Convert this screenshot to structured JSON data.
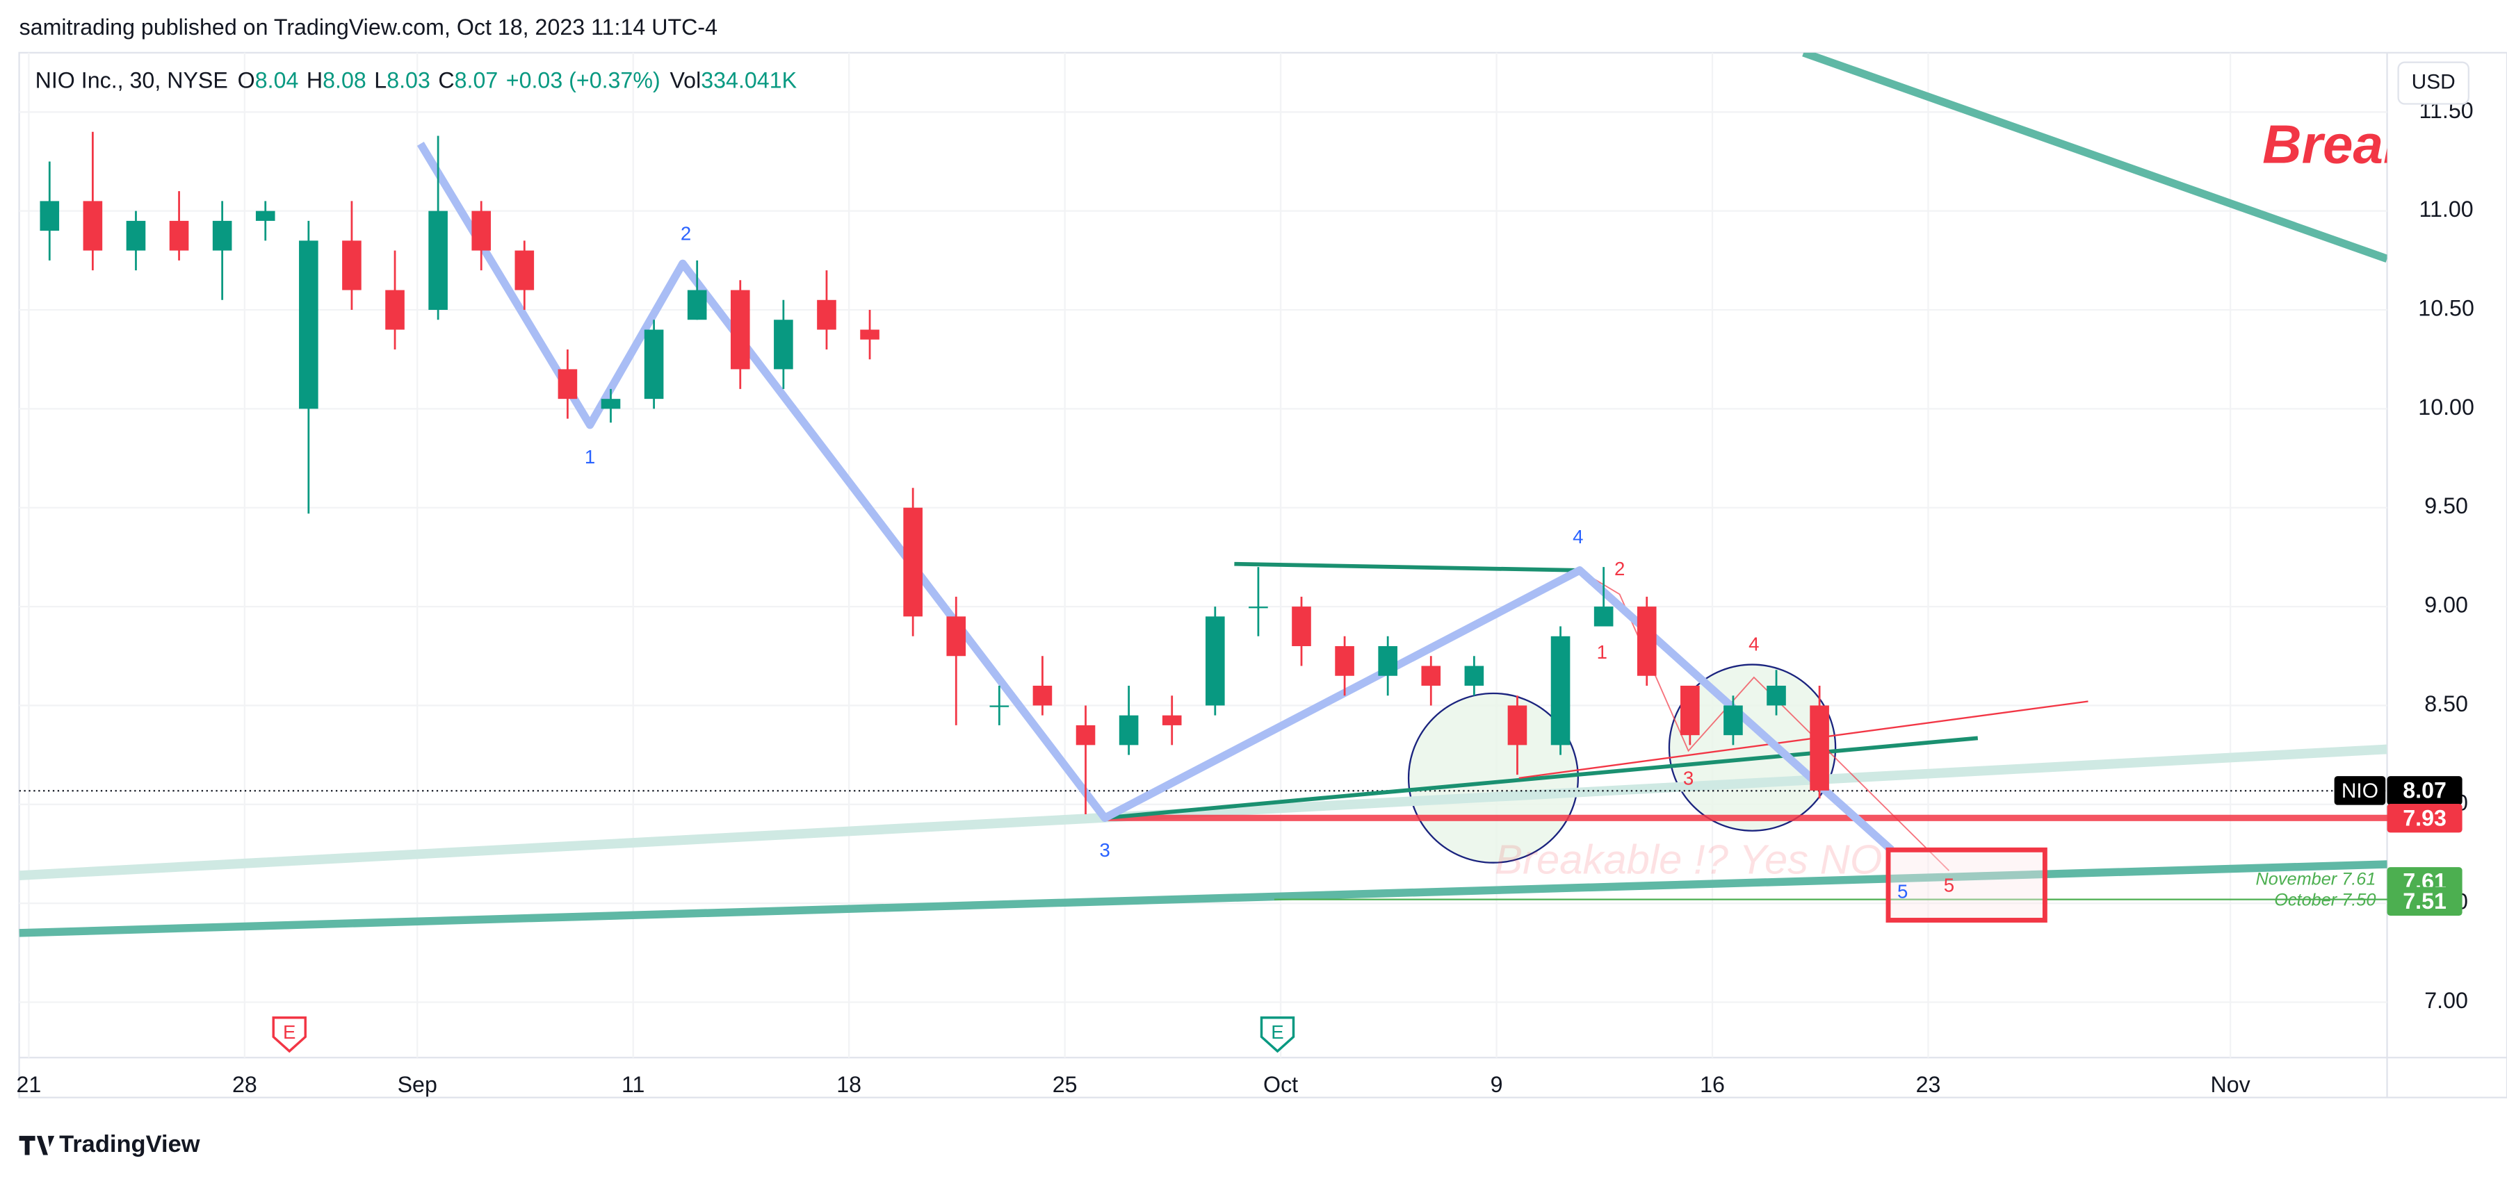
{
  "header": {
    "publisher": "samitrading published on TradingView.com, Oct 18, 2023 11:14 UTC-4"
  },
  "chart_data": {
    "type": "candlestick",
    "title": "NIO Inc., 30, NYSE",
    "legend_items": [
      {
        "key": "O",
        "value": 8.04
      },
      {
        "key": "H",
        "value": 8.08
      },
      {
        "key": "L",
        "value": 8.03
      },
      {
        "key": "C",
        "value": 8.07
      }
    ],
    "change": "+0.03 (+0.37%)",
    "volume": {
      "key": "Vol",
      "value": "334.041K"
    },
    "currency": "USD",
    "x": [
      "2023-08-21",
      "2023-08-22",
      "2023-08-23",
      "2023-08-24",
      "2023-08-25",
      "2023-08-28",
      "2023-08-29",
      "2023-08-30",
      "2023-08-31",
      "2023-09-01",
      "2023-09-05",
      "2023-09-06",
      "2023-09-07",
      "2023-09-08",
      "2023-09-11",
      "2023-09-12",
      "2023-09-13",
      "2023-09-14",
      "2023-09-15",
      "2023-09-18",
      "2023-09-19",
      "2023-09-20",
      "2023-09-21",
      "2023-09-22",
      "2023-09-25",
      "2023-09-26",
      "2023-09-27",
      "2023-09-28",
      "2023-09-29",
      "2023-10-02",
      "2023-10-03",
      "2023-10-04",
      "2023-10-05",
      "2023-10-06",
      "2023-10-09",
      "2023-10-10",
      "2023-10-11",
      "2023-10-12",
      "2023-10-13",
      "2023-10-16",
      "2023-10-17",
      "2023-10-18",
      "2023-10-19",
      "2023-10-20",
      "2023-10-23",
      "2023-10-24",
      "2023-10-25",
      "2023-10-26",
      "2023-10-27",
      "2023-10-30",
      "2023-10-31",
      "2023-11-01"
    ],
    "open": [
      10.9,
      11.05,
      10.8,
      10.95,
      10.8,
      10.95,
      10.0,
      10.85,
      10.6,
      10.5,
      11.0,
      10.8,
      10.2,
      10.0,
      10.05,
      10.45,
      10.6,
      10.2,
      10.55,
      10.4,
      9.5,
      8.95,
      8.5,
      8.6,
      8.4,
      8.3,
      8.45,
      8.5,
      9.0,
      9.0,
      8.8,
      8.65,
      8.7,
      8.6,
      8.5,
      8.3,
      8.9,
      9.0,
      8.6,
      8.35,
      8.5,
      8.5,
      null,
      null,
      null,
      null,
      null,
      null,
      null,
      null,
      null,
      null
    ],
    "high": [
      11.25,
      11.4,
      11.0,
      11.1,
      11.05,
      11.05,
      10.95,
      11.05,
      10.8,
      11.38,
      11.05,
      10.85,
      10.3,
      10.1,
      10.45,
      10.75,
      10.65,
      10.55,
      10.7,
      10.5,
      9.6,
      9.05,
      8.6,
      8.75,
      8.5,
      8.6,
      8.55,
      9.0,
      9.2,
      9.05,
      8.85,
      8.85,
      8.75,
      8.75,
      8.55,
      8.9,
      9.2,
      9.05,
      8.6,
      8.55,
      8.68,
      8.6,
      null,
      null,
      null,
      null,
      null,
      null,
      null,
      null,
      null,
      null
    ],
    "low": [
      10.75,
      10.7,
      10.7,
      10.75,
      10.55,
      10.85,
      9.47,
      10.5,
      10.3,
      10.45,
      10.7,
      10.5,
      9.95,
      9.93,
      10.0,
      10.45,
      10.1,
      10.1,
      10.3,
      10.25,
      8.85,
      8.4,
      8.4,
      8.45,
      7.95,
      8.25,
      8.3,
      8.45,
      8.85,
      8.7,
      8.55,
      8.55,
      8.5,
      8.55,
      8.15,
      8.25,
      8.9,
      8.6,
      8.3,
      8.3,
      8.45,
      8.03,
      null,
      null,
      null,
      null,
      null,
      null,
      null,
      null,
      null,
      null
    ],
    "close": [
      11.05,
      10.8,
      10.95,
      10.8,
      10.95,
      11.0,
      10.85,
      10.6,
      10.4,
      11.0,
      10.8,
      10.6,
      10.05,
      10.05,
      10.4,
      10.6,
      10.2,
      10.45,
      10.4,
      10.35,
      8.95,
      8.75,
      8.5,
      8.5,
      8.3,
      8.45,
      8.4,
      8.95,
      9.0,
      8.8,
      8.65,
      8.8,
      8.6,
      8.7,
      8.3,
      8.85,
      9.0,
      8.65,
      8.35,
      8.5,
      8.6,
      8.07,
      null,
      null,
      null,
      null,
      null,
      null,
      null,
      null,
      null,
      null
    ],
    "up_color": "#089981",
    "down_color": "#f23645",
    "xticks": [
      {
        "value": "2023-08-21",
        "label": "21"
      },
      {
        "value": "2023-08-28",
        "label": "28"
      },
      {
        "value": "2023-09-01",
        "label": "Sep"
      },
      {
        "value": "2023-09-11",
        "label": "11"
      },
      {
        "value": "2023-09-18",
        "label": "18"
      },
      {
        "value": "2023-09-25",
        "label": "25"
      },
      {
        "value": "2023-10-02",
        "label": "Oct"
      },
      {
        "value": "2023-10-09",
        "label": "9"
      },
      {
        "value": "2023-10-16",
        "label": "16"
      },
      {
        "value": "2023-10-23",
        "label": "23"
      },
      {
        "value": "2023-11-01",
        "label": "Nov"
      }
    ],
    "ylim": [
      6.72,
      11.8
    ],
    "yticks": [
      {
        "value": 7,
        "label": "7.00"
      },
      {
        "value": 7.5,
        "label": "7.50"
      },
      {
        "value": 8,
        "label": "8.00"
      },
      {
        "value": 8.5,
        "label": "8.50"
      },
      {
        "value": 9,
        "label": "9.00"
      },
      {
        "value": 9.5,
        "label": "9.50"
      },
      {
        "value": 10,
        "label": "10.00"
      },
      {
        "value": 10.5,
        "label": "10.50"
      },
      {
        "value": 11,
        "label": "11.00"
      },
      {
        "value": 11.5,
        "label": "11.50"
      }
    ],
    "grid": true,
    "price_labels": [
      {
        "name": "NIO",
        "value": 8.07,
        "color": "#000000"
      },
      {
        "value": 7.93,
        "color": "#f23645"
      },
      {
        "value": 7.61,
        "color": "#4caf50"
      },
      {
        "value": 7.51,
        "color": "#4caf50"
      }
    ],
    "annotations": {
      "wave_blue": [
        "1",
        "2",
        "3",
        "4",
        "5"
      ],
      "wave_red": [
        "1",
        "2",
        "3",
        "4",
        "5"
      ],
      "breakable": "Breakable !? Yes NO",
      "break": "Break",
      "november": "November 7.61",
      "october": "October 7.50",
      "earnings": [
        "E",
        "E"
      ]
    }
  },
  "footer": {
    "brand": "TradingView"
  }
}
